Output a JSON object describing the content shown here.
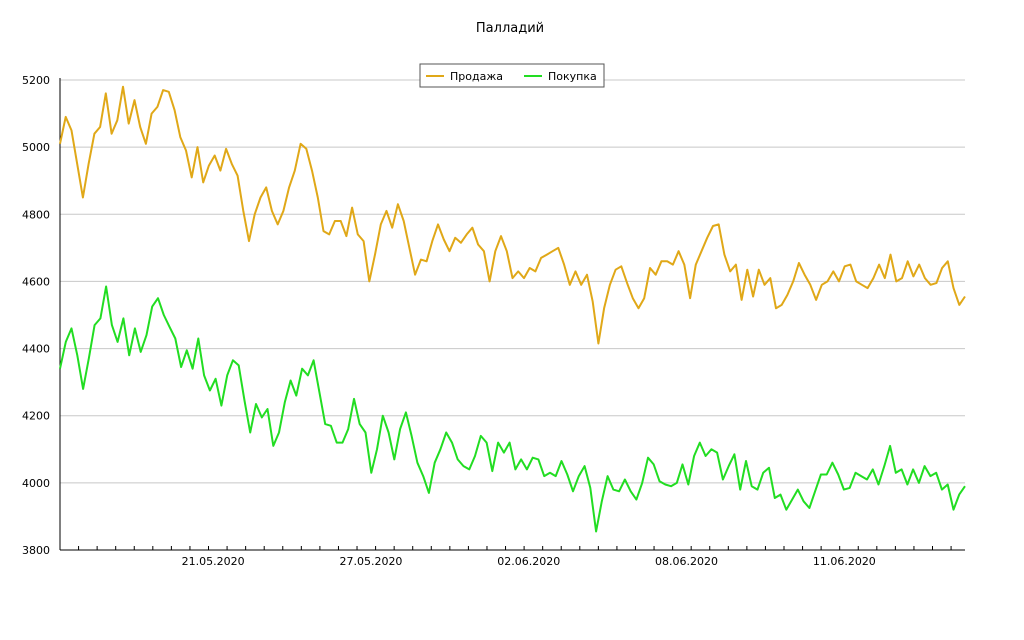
{
  "chart_data": {
    "type": "line",
    "title": "Палладий",
    "xlabel": "",
    "ylabel": "",
    "ylim": [
      3800,
      5200
    ],
    "yticks": [
      3800,
      4000,
      4200,
      4400,
      4600,
      4800,
      5000,
      5200
    ],
    "xlim": [
      0,
      195
    ],
    "xticks": [
      {
        "pos": 33,
        "label": "21.05.2020"
      },
      {
        "pos": 67,
        "label": "27.05.2020"
      },
      {
        "pos": 101,
        "label": "02.06.2020"
      },
      {
        "pos": 135,
        "label": "08.06.2020"
      },
      {
        "pos": 169,
        "label": "11.06.2020"
      }
    ],
    "grid": true,
    "legend": "top-center",
    "series": [
      {
        "name": "Продажа",
        "color": "#e0a818",
        "values": [
          5010,
          5090,
          5050,
          4950,
          4850,
          4950,
          5040,
          5060,
          5160,
          5040,
          5080,
          5180,
          5070,
          5140,
          5060,
          5010,
          5100,
          5120,
          5170,
          5165,
          5110,
          5030,
          4990,
          4910,
          5000,
          4895,
          4945,
          4975,
          4930,
          4995,
          4950,
          4915,
          4810,
          4720,
          4800,
          4850,
          4880,
          4810,
          4770,
          4810,
          4880,
          4930,
          5010,
          4995,
          4930,
          4850,
          4750,
          4740,
          4780,
          4780,
          4735,
          4820,
          4740,
          4720,
          4600,
          4680,
          4770,
          4810,
          4760,
          4830,
          4780,
          4700,
          4620,
          4665,
          4660,
          4720,
          4770,
          4725,
          4690,
          4730,
          4715,
          4740,
          4760,
          4710,
          4690,
          4600,
          4690,
          4735,
          4690,
          4610,
          4630,
          4610,
          4640,
          4630,
          4670,
          4680,
          4690,
          4700,
          4650,
          4590,
          4630,
          4590,
          4620,
          4540,
          4415,
          4520,
          4590,
          4635,
          4645,
          4595,
          4550,
          4520,
          4550,
          4640,
          4620,
          4660,
          4660,
          4650,
          4690,
          4650,
          4550,
          4650,
          4690,
          4730,
          4765,
          4770,
          4680,
          4630,
          4650,
          4545,
          4635,
          4555,
          4635,
          4590,
          4610,
          4520,
          4530,
          4560,
          4600,
          4655,
          4620,
          4590,
          4545,
          4590,
          4600,
          4630,
          4600,
          4645,
          4650,
          4600,
          4590,
          4580,
          4610,
          4650,
          4610,
          4680,
          4600,
          4610,
          4660,
          4615,
          4650,
          4610,
          4590,
          4595,
          4640,
          4660,
          4580,
          4530,
          4555
        ]
      },
      {
        "name": "Покупка",
        "color": "#22dd22",
        "values": [
          4340,
          4420,
          4460,
          4380,
          4280,
          4370,
          4470,
          4490,
          4585,
          4470,
          4420,
          4490,
          4380,
          4460,
          4390,
          4440,
          4525,
          4550,
          4500,
          4465,
          4430,
          4345,
          4395,
          4340,
          4430,
          4320,
          4275,
          4310,
          4230,
          4320,
          4365,
          4350,
          4245,
          4150,
          4235,
          4195,
          4220,
          4110,
          4150,
          4240,
          4305,
          4260,
          4340,
          4320,
          4365,
          4270,
          4175,
          4170,
          4120,
          4120,
          4160,
          4250,
          4175,
          4150,
          4030,
          4100,
          4200,
          4150,
          4070,
          4160,
          4210,
          4140,
          4060,
          4020,
          3970,
          4060,
          4100,
          4150,
          4120,
          4070,
          4050,
          4040,
          4080,
          4140,
          4120,
          4035,
          4120,
          4090,
          4120,
          4040,
          4070,
          4040,
          4075,
          4070,
          4020,
          4030,
          4020,
          4065,
          4025,
          3975,
          4020,
          4050,
          3985,
          3855,
          3945,
          4020,
          3980,
          3975,
          4010,
          3975,
          3950,
          4000,
          4075,
          4055,
          4005,
          3995,
          3990,
          4000,
          4055,
          3995,
          4080,
          4120,
          4080,
          4100,
          4090,
          4010,
          4050,
          4085,
          3980,
          4065,
          3990,
          3980,
          4030,
          4045,
          3955,
          3965,
          3920,
          3950,
          3980,
          3945,
          3925,
          3975,
          4025,
          4025,
          4060,
          4025,
          3980,
          3985,
          4030,
          4020,
          4010,
          4040,
          3995,
          4050,
          4110,
          4030,
          4040,
          3995,
          4040,
          4000,
          4050,
          4020,
          4030,
          3980,
          3995,
          3920,
          3965,
          3990
        ]
      }
    ]
  }
}
